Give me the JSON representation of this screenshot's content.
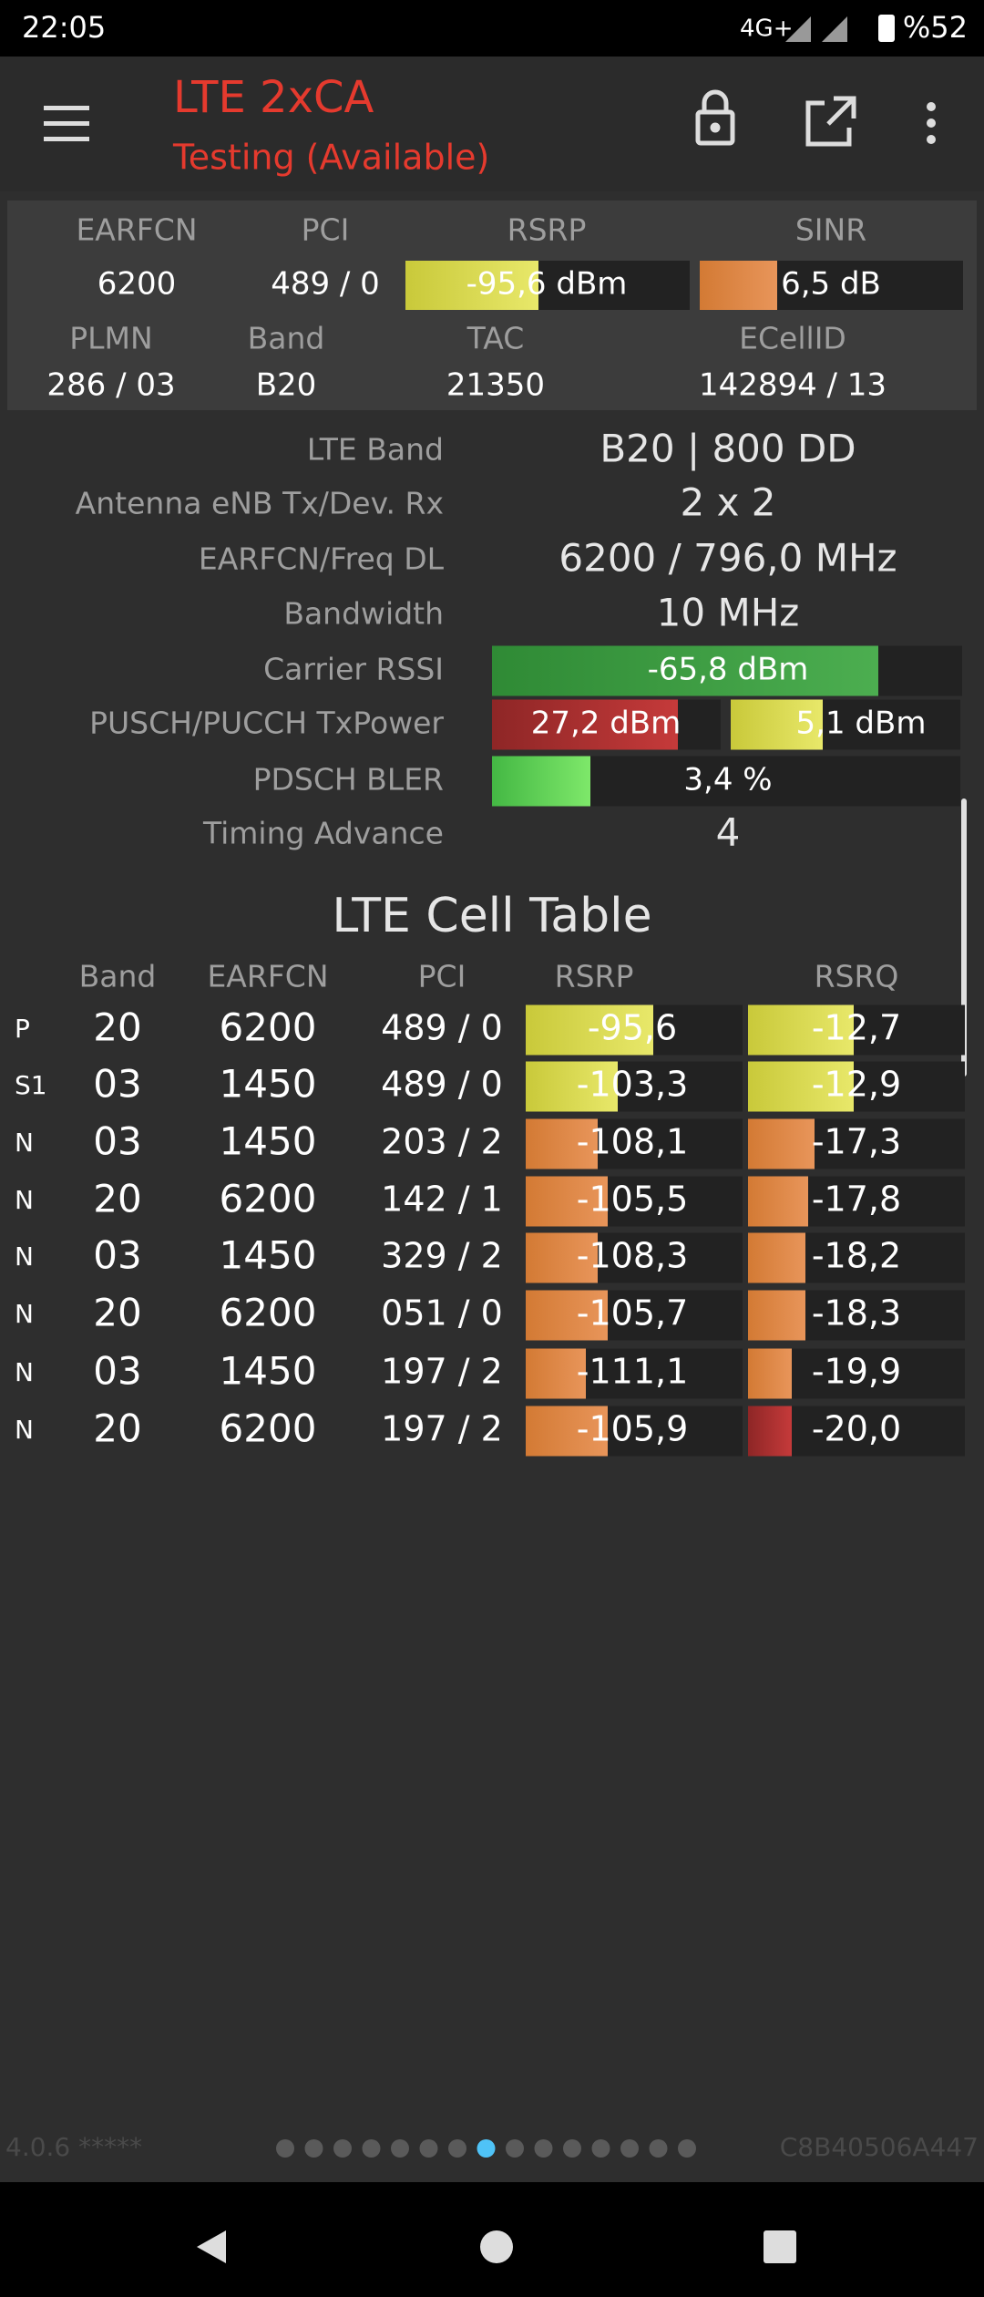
{
  "status_bar": {
    "time": "22:05",
    "network": "4G+",
    "battery": "%52"
  },
  "app_bar": {
    "title": "LTE 2xCA",
    "subtitle": "Testing (Available)"
  },
  "summary": {
    "headers": [
      "EARFCN",
      "PCI",
      "RSRP",
      "SINR"
    ],
    "values": [
      "6200",
      "489 / 0",
      "-95,6 dBm",
      "6,5 dB"
    ],
    "headers2": [
      "PLMN",
      "Band",
      "TAC",
      "ECellID"
    ],
    "values2": [
      "286 / 03",
      "B20",
      "21350",
      "142894 / 13"
    ]
  },
  "details": {
    "rows": [
      [
        "LTE Band",
        "B20 | 800 DD"
      ],
      [
        "Antenna eNB Tx/Dev. Rx",
        "2 x 2"
      ],
      [
        "EARFCN/Freq DL",
        "6200 / 796,0 MHz"
      ],
      [
        "Bandwidth",
        "10 MHz"
      ],
      [
        "Carrier RSSI",
        "-65,8 dBm"
      ],
      [
        "PUSCH/PUCCH TxPower",
        "27,2 dBm",
        "5,1 dBm"
      ],
      [
        "PDSCH BLER",
        "3,4 %"
      ],
      [
        "Timing Advance",
        "4"
      ]
    ]
  },
  "cell_table": {
    "title": "LTE Cell Table",
    "headers": [
      "Band",
      "EARFCN",
      "PCI",
      "RSRP",
      "RSRQ"
    ],
    "rows": [
      [
        "P",
        "20",
        "6200",
        "489 / 0",
        "-95,6",
        "-12,7"
      ],
      [
        "S1",
        "03",
        "1450",
        "489 / 0",
        "-103,3",
        "-12,9"
      ],
      [
        "N",
        "03",
        "1450",
        "203 / 2",
        "-108,1",
        "-17,3"
      ],
      [
        "N",
        "20",
        "6200",
        "142 / 1",
        "-105,5",
        "-17,8"
      ],
      [
        "N",
        "03",
        "1450",
        "329 / 2",
        "-108,3",
        "-18,2"
      ],
      [
        "N",
        "20",
        "6200",
        "051 / 0",
        "-105,7",
        "-18,3"
      ],
      [
        "N",
        "03",
        "1450",
        "197 / 2",
        "-111,1",
        "-19,9"
      ],
      [
        "N",
        "20",
        "6200",
        "197 / 2",
        "-105,9",
        "-20,0"
      ]
    ]
  },
  "footer": {
    "version": "4.0.6 *****",
    "device_id": "C8B40506A447"
  }
}
